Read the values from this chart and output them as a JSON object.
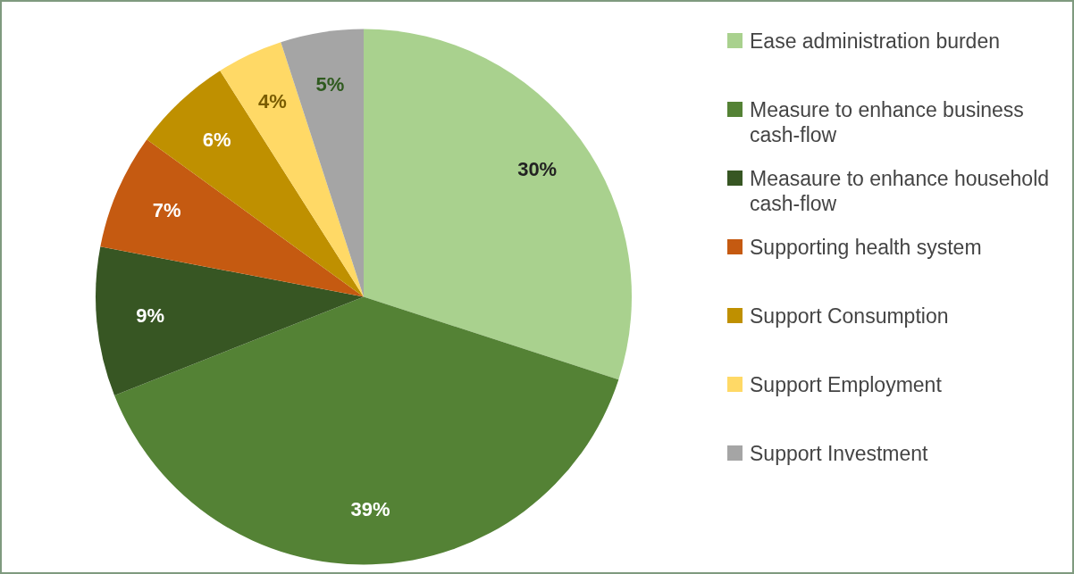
{
  "chart_data": {
    "type": "pie",
    "categories": [
      "Ease administration burden",
      "Measure to enhance business cash-flow",
      "Measaure to enhance household cash-flow",
      "Supporting health system",
      "Support Consumption",
      "Support Employment",
      "Support Investment"
    ],
    "values": [
      30,
      39,
      9,
      7,
      6,
      4,
      5
    ],
    "value_labels": [
      "30%",
      "39%",
      "9%",
      "7%",
      "6%",
      "4%",
      "5%"
    ],
    "colors": [
      "#a9d18e",
      "#548235",
      "#375623",
      "#c55a11",
      "#bf9000",
      "#ffd966",
      "#a5a5a5"
    ],
    "legend": "right"
  }
}
